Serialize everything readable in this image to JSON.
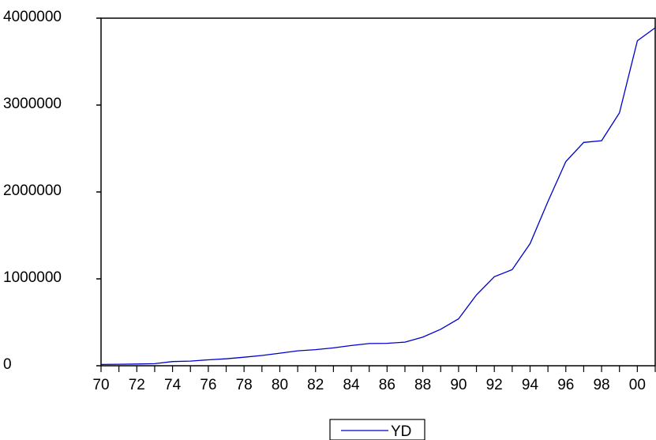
{
  "chart_data": {
    "type": "line",
    "x": [
      1970,
      1971,
      1972,
      1973,
      1974,
      1975,
      1976,
      1977,
      1978,
      1979,
      1980,
      1981,
      1982,
      1983,
      1984,
      1985,
      1986,
      1987,
      1988,
      1989,
      1990,
      1991,
      1992,
      1993,
      1994,
      1995,
      1996,
      1997,
      1998,
      1999,
      2000,
      2001
    ],
    "series": [
      {
        "name": "YD",
        "values": [
          15000,
          17000,
          20000,
          24000,
          48000,
          54000,
          68000,
          80000,
          98000,
          118000,
          145000,
          172000,
          185000,
          205000,
          233000,
          255000,
          258000,
          272000,
          330000,
          420000,
          540000,
          815000,
          1025000,
          1105000,
          1405000,
          1890000,
          2350000,
          2570000,
          2590000,
          2910000,
          3740000,
          3890000
        ],
        "color": "#0000cc"
      }
    ],
    "xlim": [
      1970,
      2001
    ],
    "ylim": [
      0,
      4000000
    ],
    "x_ticks": [
      1970,
      1971,
      1972,
      1973,
      1974,
      1975,
      1976,
      1977,
      1978,
      1979,
      1980,
      1981,
      1982,
      1983,
      1984,
      1985,
      1986,
      1987,
      1988,
      1989,
      1990,
      1991,
      1992,
      1993,
      1994,
      1995,
      1996,
      1997,
      1998,
      1999,
      2000,
      2001
    ],
    "x_tick_labels": [
      {
        "value": 1970,
        "label": "70"
      },
      {
        "value": 1972,
        "label": "72"
      },
      {
        "value": 1974,
        "label": "74"
      },
      {
        "value": 1976,
        "label": "76"
      },
      {
        "value": 1978,
        "label": "78"
      },
      {
        "value": 1980,
        "label": "80"
      },
      {
        "value": 1982,
        "label": "82"
      },
      {
        "value": 1984,
        "label": "84"
      },
      {
        "value": 1986,
        "label": "86"
      },
      {
        "value": 1988,
        "label": "88"
      },
      {
        "value": 1990,
        "label": "90"
      },
      {
        "value": 1992,
        "label": "92"
      },
      {
        "value": 1994,
        "label": "94"
      },
      {
        "value": 1996,
        "label": "96"
      },
      {
        "value": 1998,
        "label": "98"
      },
      {
        "value": 2000,
        "label": "00"
      }
    ],
    "y_ticks": [
      {
        "value": 0,
        "label": "0"
      },
      {
        "value": 1000000,
        "label": "1000000"
      },
      {
        "value": 2000000,
        "label": "2000000"
      },
      {
        "value": 3000000,
        "label": "3000000"
      },
      {
        "value": 4000000,
        "label": "4000000"
      }
    ],
    "grid": false,
    "legend": {
      "position": "bottom-center",
      "entries": [
        "YD"
      ]
    },
    "title": "",
    "xlabel": "",
    "ylabel": ""
  }
}
